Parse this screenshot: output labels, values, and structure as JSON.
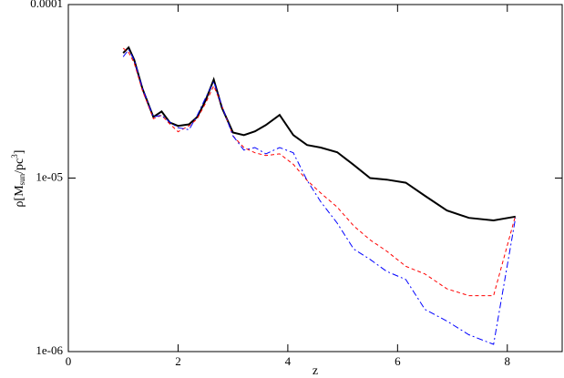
{
  "chart_data": {
    "type": "line",
    "x_label": "z",
    "y_label_parts": [
      "ρ[M",
      "sun",
      "/pc",
      "3",
      "]"
    ],
    "x": [
      1.0,
      1.1,
      1.2,
      1.35,
      1.55,
      1.7,
      1.85,
      2.0,
      2.2,
      2.35,
      2.5,
      2.65,
      2.8,
      3.0,
      3.2,
      3.4,
      3.6,
      3.85,
      4.1,
      4.35,
      4.6,
      4.9,
      5.2,
      5.5,
      5.8,
      6.15,
      6.5,
      6.9,
      7.3,
      7.75,
      8.15
    ],
    "series": [
      {
        "color": "#000000",
        "dash": "",
        "width": 2,
        "values": [
          5.26e-05,
          5.66e-05,
          4.8e-05,
          3.28e-05,
          2.25e-05,
          2.42e-05,
          2.09e-05,
          2e-05,
          2.04e-05,
          2.25e-05,
          2.8e-05,
          3.7e-05,
          2.54e-05,
          1.83e-05,
          1.77e-05,
          1.86e-05,
          2.02e-05,
          2.31e-05,
          1.77e-05,
          1.55e-05,
          1.5e-05,
          1.41e-05,
          1.19e-05,
          1e-05,
          9.8e-06,
          9.4e-06,
          7.9e-06,
          6.5e-06,
          5.9e-06,
          5.7e-06,
          6e-06
        ]
      },
      {
        "color": "#ff0000",
        "dash": "4,3",
        "width": 1,
        "values": [
          5.6e-05,
          5.3e-05,
          4.6e-05,
          3.2e-05,
          2.2e-05,
          2.3e-05,
          2.05e-05,
          1.85e-05,
          2e-05,
          2.2e-05,
          2.7e-05,
          3.4e-05,
          2.6e-05,
          1.75e-05,
          1.5e-05,
          1.4e-05,
          1.35e-05,
          1.38e-05,
          1.2e-05,
          9.7e-06,
          8.2e-06,
          6.8e-06,
          5.3e-06,
          4.4e-06,
          3.8e-06,
          3.1e-06,
          2.8e-06,
          2.3e-06,
          2.1e-06,
          2.1e-06,
          6.1e-06
        ]
      },
      {
        "color": "#0000ff",
        "dash": "7,3,2,3",
        "width": 1,
        "values": [
          5e-05,
          5.5e-05,
          4.8e-05,
          3.3e-05,
          2.25e-05,
          2.3e-05,
          2.1e-05,
          1.95e-05,
          1.9e-05,
          2.3e-05,
          2.9e-05,
          3.6e-05,
          2.6e-05,
          1.75e-05,
          1.45e-05,
          1.5e-05,
          1.38e-05,
          1.5e-05,
          1.4e-05,
          9.7e-06,
          7.3e-06,
          5.5e-06,
          3.9e-06,
          3.4e-06,
          2.9e-06,
          2.6e-06,
          1.75e-06,
          1.5e-06,
          1.25e-06,
          1.1e-06,
          5.9e-06
        ]
      }
    ],
    "xlim": [
      0,
      9
    ],
    "xticks": [
      0,
      2,
      4,
      6,
      8
    ],
    "ylim": [
      1e-06,
      0.0001
    ],
    "log_y": true,
    "yticks": [
      {
        "value": 1e-06,
        "label": "1e-06"
      },
      {
        "value": 1e-05,
        "label": "1e-05"
      },
      {
        "value": 0.0001,
        "label": "0.0001"
      }
    ]
  }
}
